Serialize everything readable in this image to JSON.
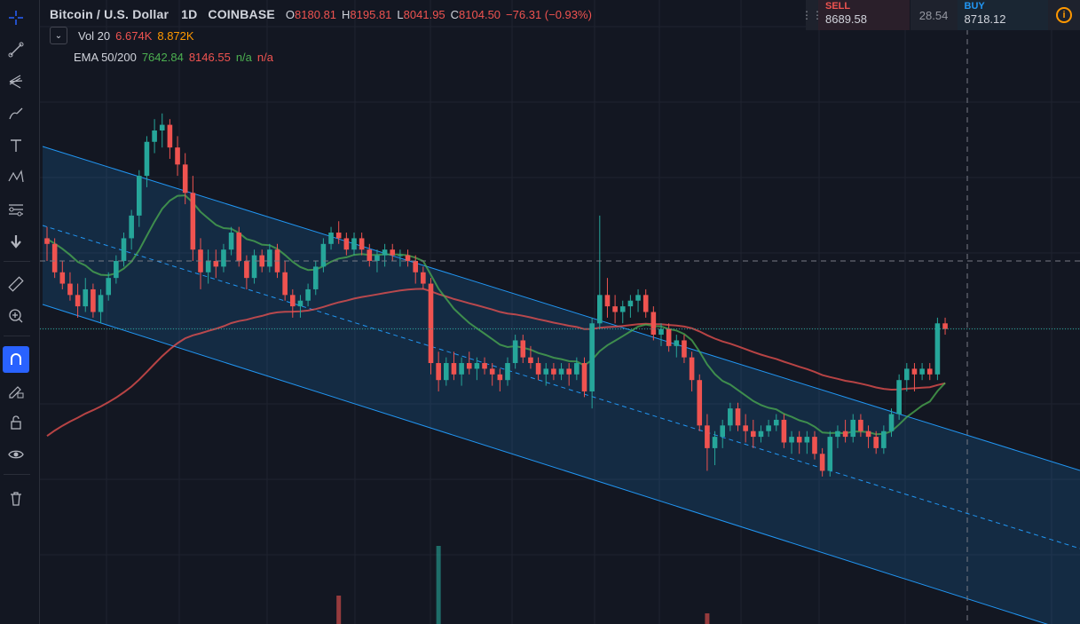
{
  "symbol": {
    "name": "Bitcoin / U.S. Dollar",
    "interval": "1D",
    "exchange": "COINBASE",
    "ohlc": {
      "o_label": "O",
      "o": "8180.81",
      "h_label": "H",
      "h": "8195.81",
      "l_label": "L",
      "l": "8041.95",
      "c_label": "C",
      "c": "8104.50",
      "change": "−76.31 (−0.93%)"
    }
  },
  "indicators": {
    "vol": {
      "name": "Vol 20",
      "value1": "6.674K",
      "value2": "8.872K"
    },
    "ema": {
      "name": "EMA 50/200",
      "value1": "7642.84",
      "value2": "8146.55",
      "value3": "n/a",
      "value4": "n/a"
    }
  },
  "trade_panel": {
    "sell_label": "SELL",
    "sell_price": "8689.58",
    "spread": "28.54",
    "buy_label": "BUY",
    "buy_price": "8718.12"
  },
  "toolbar": {
    "icons": [
      "crosshair-icon",
      "trend-line-icon",
      "pitchfork-icon",
      "brush-icon",
      "text-icon",
      "pattern-icon",
      "prediction-icon",
      "arrow-down-icon",
      "ruler-icon",
      "zoom-in-icon",
      "magnet-icon",
      "lock-drawing-icon",
      "lock-icon",
      "eye-icon",
      "trash-icon"
    ]
  },
  "colors": {
    "background": "#131722",
    "up": "#26a69a",
    "down": "#ef5350",
    "ema50": "#4caf50",
    "ema200": "#ef5350",
    "channel": "#2196f3",
    "accent": "#2962ff"
  },
  "chart_data": {
    "type": "candlestick",
    "series": [
      {
        "name": "Bitcoin / U.S. Dollar",
        "values": [
          [
            8400,
            8500,
            8200,
            8350
          ],
          [
            8350,
            8400,
            8050,
            8100
          ],
          [
            8100,
            8200,
            7950,
            8000
          ],
          [
            8000,
            8100,
            7850,
            7900
          ],
          [
            7900,
            8000,
            7700,
            7800
          ],
          [
            7800,
            8050,
            7750,
            7950
          ],
          [
            7950,
            8000,
            7700,
            7750
          ],
          [
            7750,
            7950,
            7650,
            7900
          ],
          [
            7900,
            8100,
            7850,
            8050
          ],
          [
            8050,
            8250,
            8000,
            8200
          ],
          [
            8200,
            8450,
            8150,
            8400
          ],
          [
            8400,
            8650,
            8300,
            8600
          ],
          [
            8600,
            9000,
            8500,
            8950
          ],
          [
            8950,
            9300,
            8850,
            9250
          ],
          [
            9250,
            9450,
            9150,
            9350
          ],
          [
            9350,
            9500,
            9200,
            9400
          ],
          [
            9400,
            9450,
            9100,
            9200
          ],
          [
            9200,
            9300,
            8950,
            9050
          ],
          [
            9050,
            9150,
            8700,
            8800
          ],
          [
            8800,
            8950,
            8200,
            8300
          ],
          [
            8300,
            8400,
            7950,
            8100
          ],
          [
            8100,
            8300,
            8000,
            8200
          ],
          [
            8200,
            8300,
            8050,
            8150
          ],
          [
            8150,
            8350,
            8100,
            8300
          ],
          [
            8300,
            8500,
            8250,
            8450
          ],
          [
            8450,
            8500,
            8150,
            8200
          ],
          [
            8200,
            8250,
            7950,
            8050
          ],
          [
            8050,
            8300,
            8000,
            8250
          ],
          [
            8250,
            8300,
            8100,
            8150
          ],
          [
            8150,
            8350,
            8100,
            8300
          ],
          [
            8300,
            8350,
            8050,
            8100
          ],
          [
            8100,
            8200,
            7850,
            7900
          ],
          [
            7900,
            7950,
            7700,
            7800
          ],
          [
            7800,
            7900,
            7700,
            7850
          ],
          [
            7850,
            8000,
            7800,
            7950
          ],
          [
            7950,
            8200,
            7900,
            8150
          ],
          [
            8150,
            8400,
            8100,
            8350
          ],
          [
            8350,
            8500,
            8300,
            8450
          ],
          [
            8450,
            8550,
            8350,
            8400
          ],
          [
            8400,
            8450,
            8250,
            8300
          ],
          [
            8300,
            8450,
            8250,
            8400
          ],
          [
            8400,
            8450,
            8250,
            8300
          ],
          [
            8300,
            8350,
            8150,
            8200
          ],
          [
            8200,
            8300,
            8100,
            8250
          ],
          [
            8250,
            8350,
            8150,
            8300
          ],
          [
            8300,
            8350,
            8200,
            8250
          ],
          [
            8250,
            8300,
            8150,
            8250
          ],
          [
            8250,
            8300,
            8150,
            8200
          ],
          [
            8200,
            8250,
            8000,
            8100
          ],
          [
            8100,
            8150,
            7950,
            8000
          ],
          [
            8000,
            8050,
            7200,
            7300
          ],
          [
            7300,
            7400,
            7050,
            7150
          ],
          [
            7150,
            7350,
            7100,
            7300
          ],
          [
            7300,
            7400,
            7150,
            7200
          ],
          [
            7200,
            7350,
            7100,
            7300
          ],
          [
            7300,
            7400,
            7200,
            7250
          ],
          [
            7250,
            7350,
            7150,
            7300
          ],
          [
            7300,
            7350,
            7200,
            7250
          ],
          [
            7250,
            7300,
            7100,
            7200
          ],
          [
            7200,
            7250,
            7050,
            7150
          ],
          [
            7150,
            7350,
            7100,
            7300
          ],
          [
            7300,
            7550,
            7250,
            7500
          ],
          [
            7500,
            7550,
            7300,
            7350
          ],
          [
            7350,
            7450,
            7250,
            7300
          ],
          [
            7300,
            7350,
            7150,
            7200
          ],
          [
            7200,
            7300,
            7100,
            7250
          ],
          [
            7250,
            7300,
            7150,
            7200
          ],
          [
            7200,
            7300,
            7150,
            7250
          ],
          [
            7250,
            7300,
            7100,
            7200
          ],
          [
            7200,
            7350,
            7150,
            7300
          ],
          [
            7300,
            7350,
            7000,
            7050
          ],
          [
            7050,
            7700,
            6900,
            7650
          ],
          [
            7650,
            8600,
            7600,
            7900
          ],
          [
            7900,
            8050,
            7700,
            7800
          ],
          [
            7800,
            7900,
            7650,
            7750
          ],
          [
            7750,
            7850,
            7650,
            7800
          ],
          [
            7800,
            7900,
            7700,
            7850
          ],
          [
            7850,
            7950,
            7750,
            7900
          ],
          [
            7900,
            7950,
            7700,
            7750
          ],
          [
            7750,
            7800,
            7500,
            7550
          ],
          [
            7550,
            7650,
            7450,
            7600
          ],
          [
            7600,
            7650,
            7400,
            7450
          ],
          [
            7450,
            7550,
            7350,
            7500
          ],
          [
            7500,
            7550,
            7300,
            7350
          ],
          [
            7350,
            7400,
            7050,
            7150
          ],
          [
            7150,
            7200,
            6700,
            6750
          ],
          [
            6750,
            6850,
            6350,
            6550
          ],
          [
            6550,
            6700,
            6400,
            6650
          ],
          [
            6650,
            6800,
            6550,
            6750
          ],
          [
            6750,
            6950,
            6700,
            6900
          ],
          [
            6900,
            6950,
            6700,
            6750
          ],
          [
            6750,
            6850,
            6600,
            6700
          ],
          [
            6700,
            6800,
            6550,
            6650
          ],
          [
            6650,
            6750,
            6600,
            6700
          ],
          [
            6700,
            6800,
            6650,
            6750
          ],
          [
            6750,
            6850,
            6700,
            6800
          ],
          [
            6800,
            6850,
            6550,
            6600
          ],
          [
            6600,
            6700,
            6500,
            6650
          ],
          [
            6650,
            6700,
            6500,
            6600
          ],
          [
            6600,
            6700,
            6500,
            6650
          ],
          [
            6650,
            6700,
            6450,
            6500
          ],
          [
            6500,
            6550,
            6300,
            6350
          ],
          [
            6350,
            6700,
            6300,
            6650
          ],
          [
            6650,
            6750,
            6550,
            6700
          ],
          [
            6700,
            6800,
            6600,
            6650
          ],
          [
            6650,
            6850,
            6600,
            6800
          ],
          [
            6800,
            6850,
            6650,
            6700
          ],
          [
            6700,
            6750,
            6550,
            6650
          ],
          [
            6650,
            6700,
            6500,
            6550
          ],
          [
            6550,
            6750,
            6500,
            6700
          ],
          [
            6700,
            6900,
            6650,
            6850
          ],
          [
            6850,
            7200,
            6800,
            7150
          ],
          [
            7150,
            7300,
            7050,
            7250
          ],
          [
            7250,
            7300,
            7050,
            7200
          ],
          [
            7200,
            7300,
            7150,
            7250
          ],
          [
            7250,
            7300,
            7150,
            7200
          ],
          [
            7200,
            7700,
            7150,
            7650
          ],
          [
            7650,
            7700,
            7550,
            7600
          ]
        ]
      }
    ],
    "ema50_label": "EMA 50",
    "ema200_label": "EMA 200",
    "volume_spikes": [
      [
        "up",
        51
      ],
      [
        "down",
        38
      ],
      [
        "down",
        86
      ]
    ],
    "ylim": [
      5000,
      10500
    ]
  }
}
